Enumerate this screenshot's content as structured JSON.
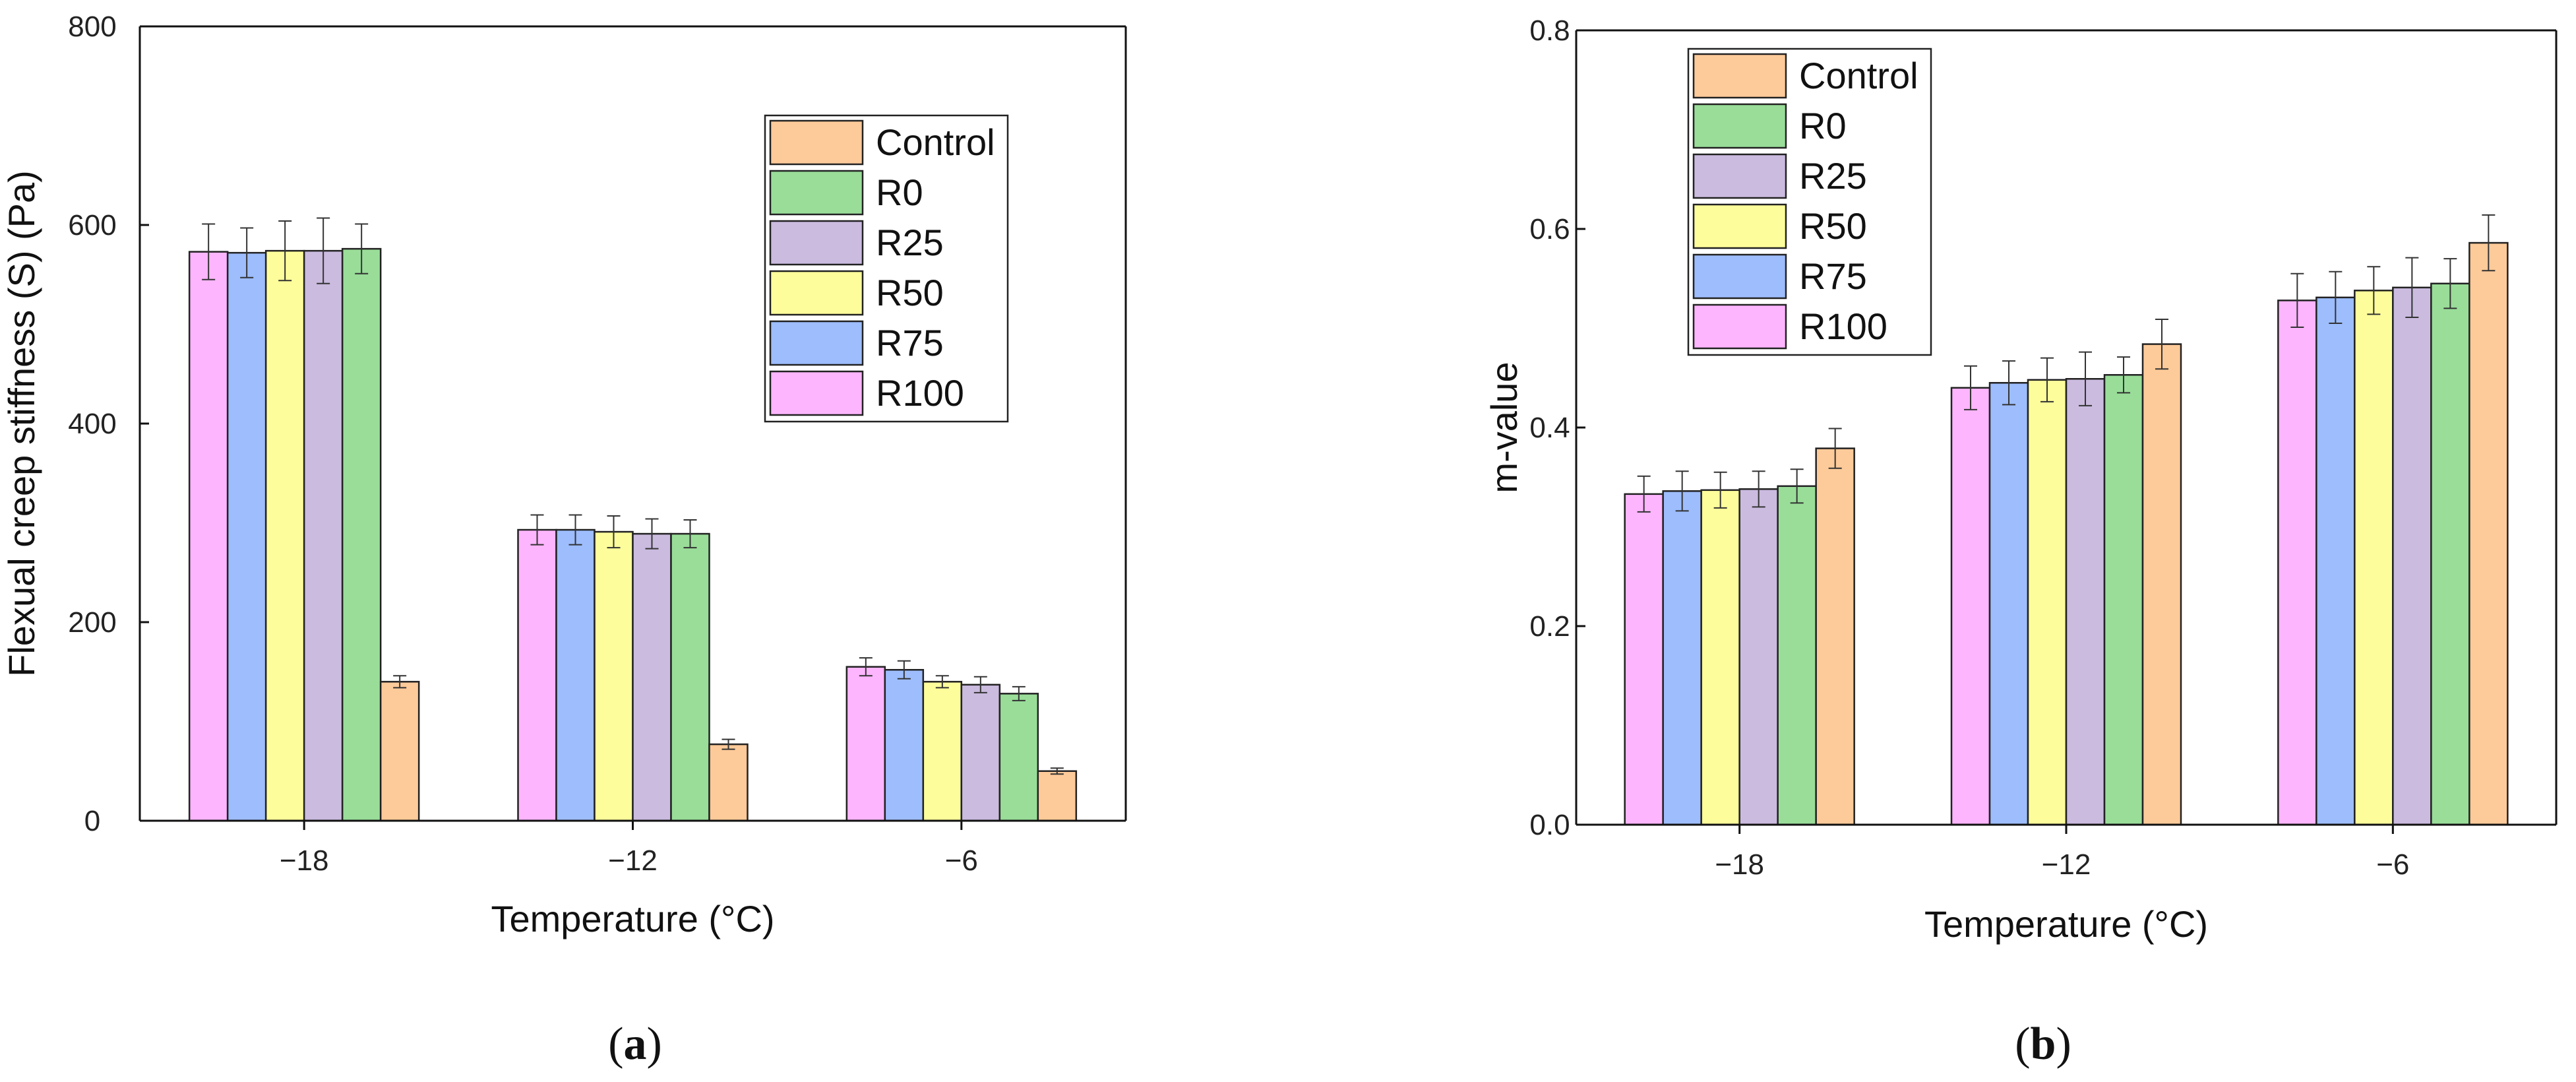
{
  "panels": [
    {
      "caption": {
        "open": "(",
        "letter": "a",
        "close": ")"
      },
      "chart_data": {
        "type": "bar",
        "ylabel": "Flexual creep stiffness (S) (Pa)",
        "xlabel": "Temperature (°C)",
        "categories": [
          "−18",
          "−12",
          "−6"
        ],
        "ylim": [
          0,
          800
        ],
        "yticks": [
          "0",
          "200",
          "400",
          "600",
          "800"
        ],
        "ytick_values": [
          0,
          200,
          400,
          600,
          800
        ],
        "legend_position": "top-right",
        "legend_order": [
          "Control",
          "R0",
          "R25",
          "R50",
          "R75",
          "R100"
        ],
        "series": [
          {
            "name": "R100",
            "color": "#fdb5fd",
            "values": [
              573,
              293,
              155
            ],
            "errors": [
              28,
              15,
              9
            ]
          },
          {
            "name": "R75",
            "color": "#9dbdfd",
            "values": [
              572,
              293,
              152
            ],
            "errors": [
              25,
              15,
              9
            ]
          },
          {
            "name": "R50",
            "color": "#fdfd9b",
            "values": [
              574,
              291,
              140
            ],
            "errors": [
              30,
              16,
              6
            ]
          },
          {
            "name": "R25",
            "color": "#cbbbdf",
            "values": [
              574,
              289,
              137
            ],
            "errors": [
              33,
              15,
              8
            ]
          },
          {
            "name": "R0",
            "color": "#99dd99",
            "values": [
              576,
              289,
              128
            ],
            "errors": [
              25,
              14,
              7
            ]
          },
          {
            "name": "Control",
            "color": "#fdca99",
            "values": [
              140,
              77,
              50
            ],
            "errors": [
              6,
              5,
              3
            ]
          }
        ]
      }
    },
    {
      "caption": {
        "open": "(",
        "letter": "b",
        "close": ")"
      },
      "chart_data": {
        "type": "bar",
        "ylabel": "m-value",
        "xlabel": "Temperature (°C)",
        "categories": [
          "−18",
          "−12",
          "−6"
        ],
        "ylim": [
          0,
          0.8
        ],
        "yticks": [
          "0.0",
          "0.2",
          "0.4",
          "0.6",
          "0.8"
        ],
        "ytick_values": [
          0,
          0.2,
          0.4,
          0.6,
          0.8
        ],
        "legend_position": "top-left",
        "legend_order": [
          "Control",
          "R0",
          "R25",
          "R50",
          "R75",
          "R100"
        ],
        "series": [
          {
            "name": "R100",
            "color": "#fdb5fd",
            "values": [
              0.333,
              0.44,
              0.528
            ],
            "errors": [
              0.018,
              0.022,
              0.027
            ]
          },
          {
            "name": "R75",
            "color": "#9dbdfd",
            "values": [
              0.336,
              0.445,
              0.531
            ],
            "errors": [
              0.02,
              0.022,
              0.026
            ]
          },
          {
            "name": "R50",
            "color": "#fdfd9b",
            "values": [
              0.337,
              0.448,
              0.538
            ],
            "errors": [
              0.018,
              0.022,
              0.024
            ]
          },
          {
            "name": "R25",
            "color": "#cbbbdf",
            "values": [
              0.338,
              0.449,
              0.541
            ],
            "errors": [
              0.018,
              0.027,
              0.03
            ]
          },
          {
            "name": "R0",
            "color": "#99dd99",
            "values": [
              0.341,
              0.453,
              0.545
            ],
            "errors": [
              0.017,
              0.018,
              0.025
            ]
          },
          {
            "name": "Control",
            "color": "#fdca99",
            "values": [
              0.379,
              0.484,
              0.586
            ],
            "errors": [
              0.02,
              0.025,
              0.028
            ]
          }
        ]
      }
    }
  ]
}
